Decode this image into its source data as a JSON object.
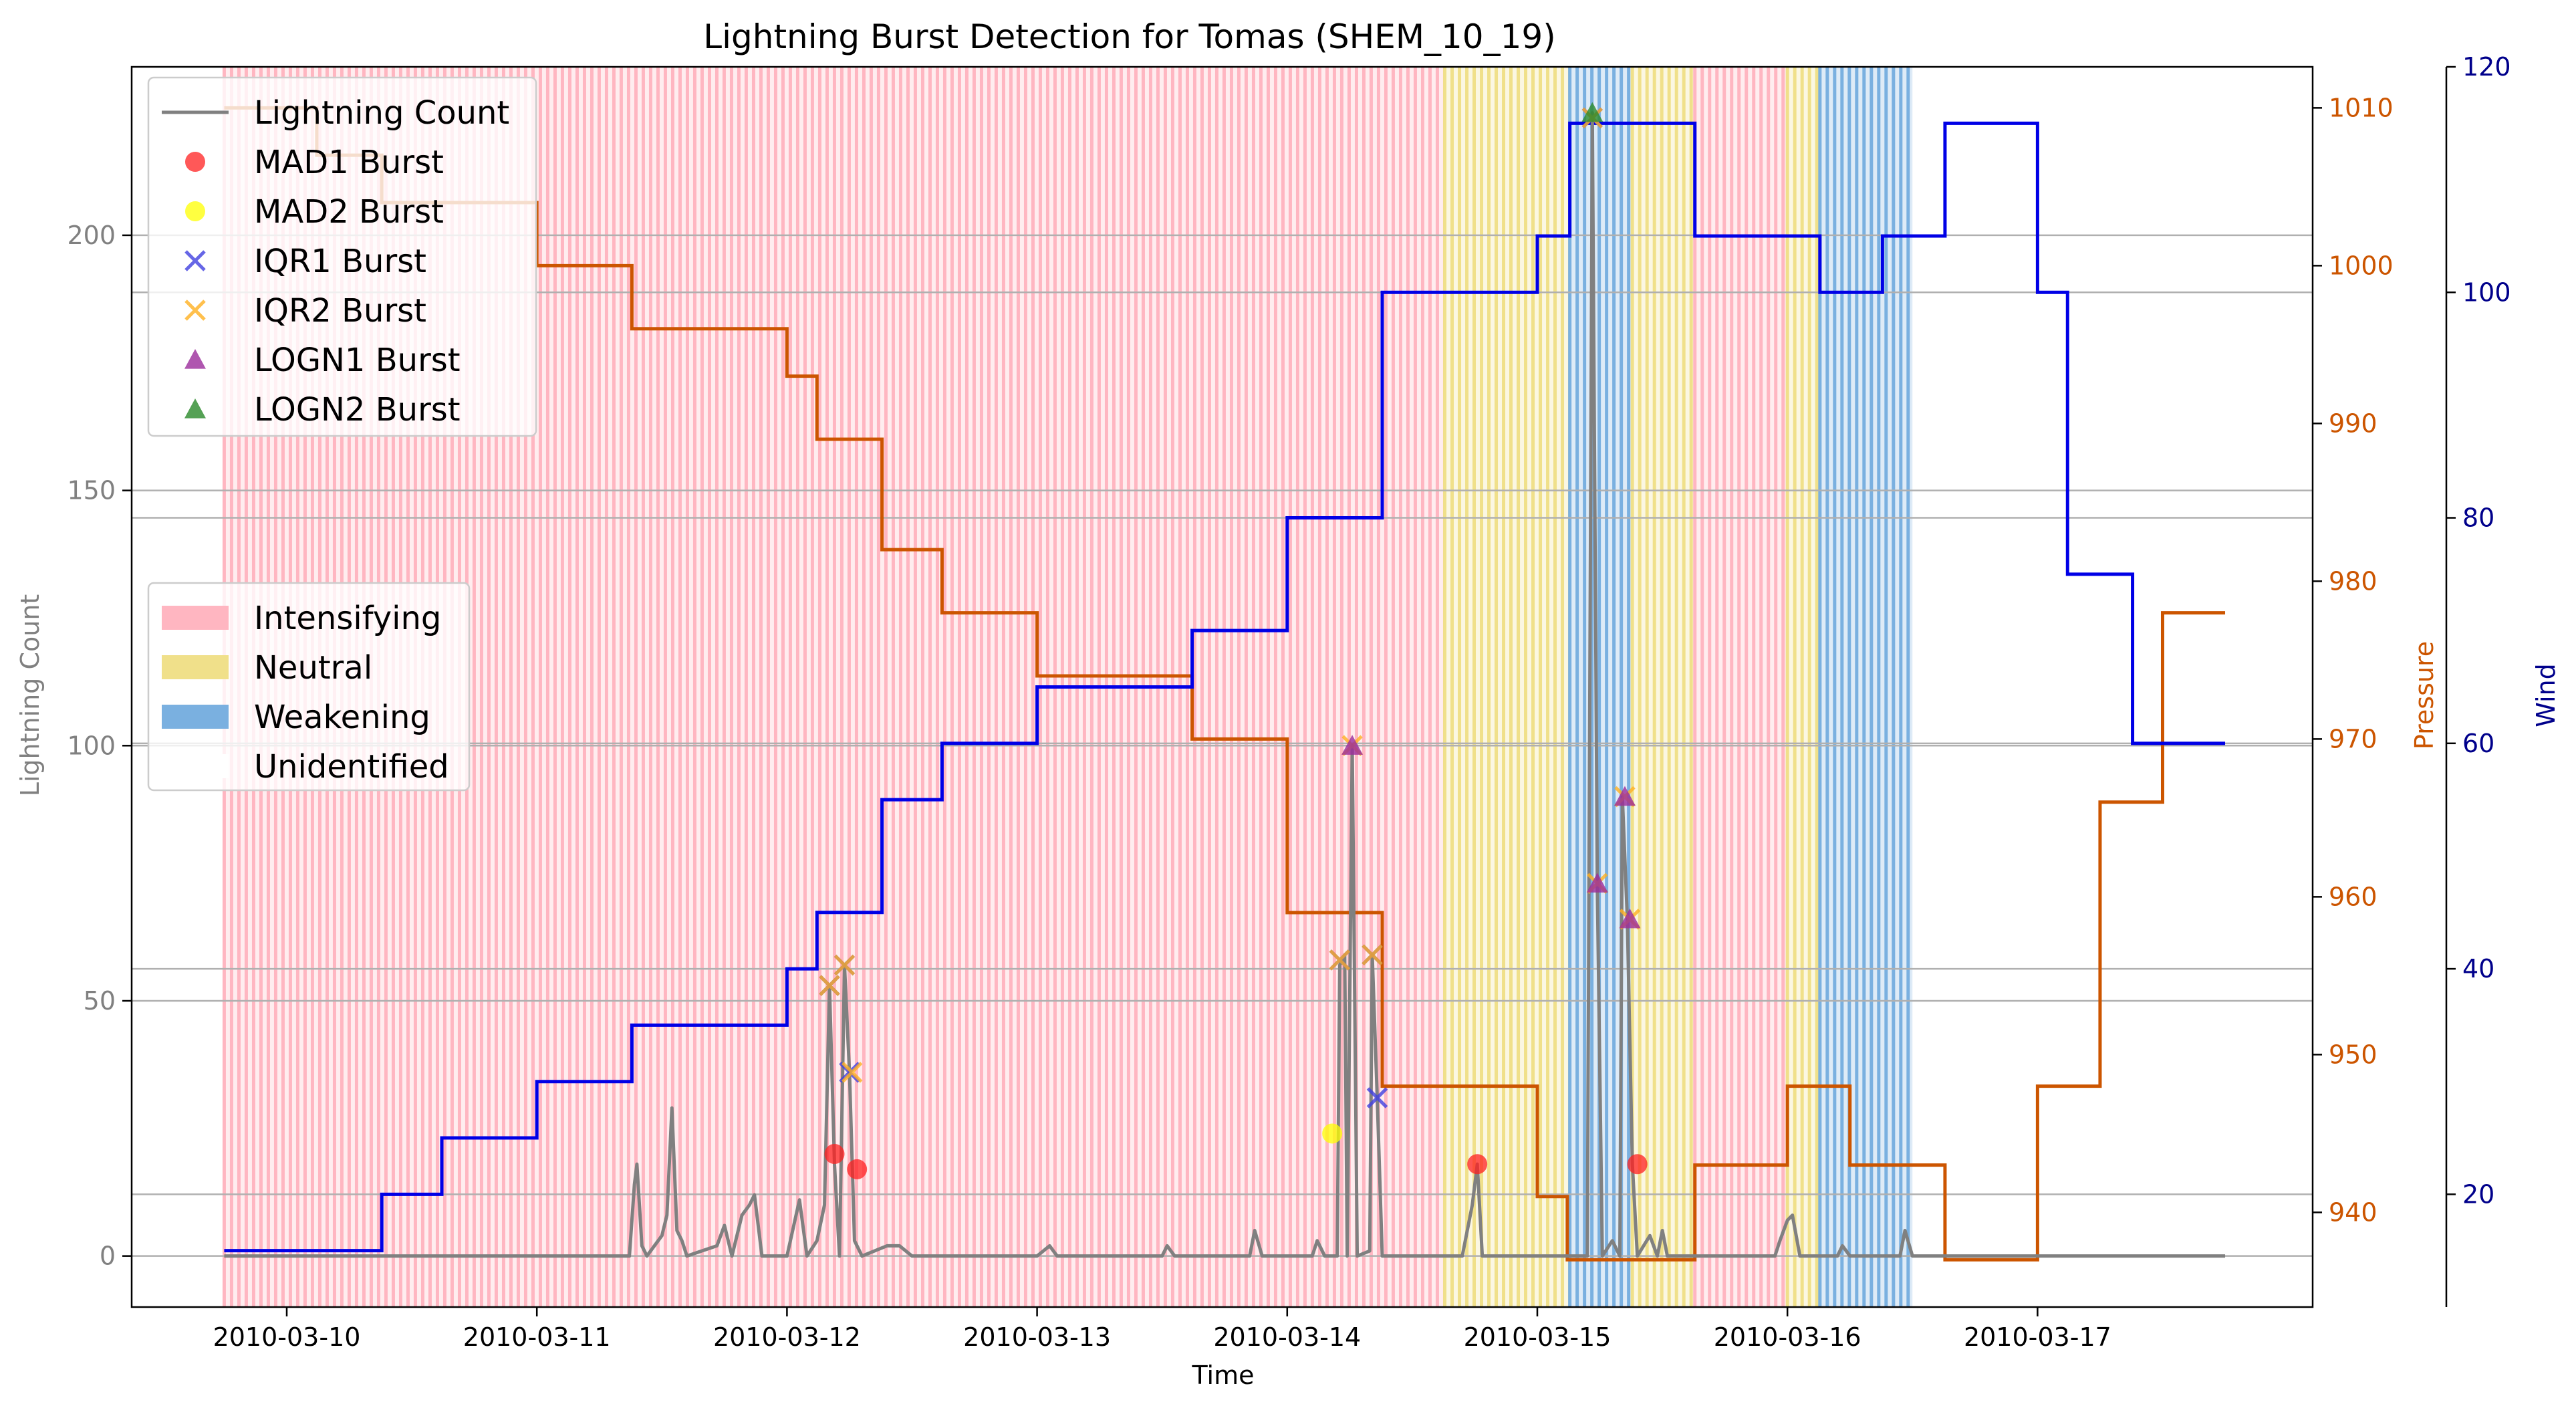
{
  "chart_data": {
    "type": "line",
    "title": "Lightning Burst Detection for Tomas (SHEM_10_19)",
    "xlabel": "Time",
    "x_ticks": [
      "2010-03-10",
      "2010-03-11",
      "2010-03-12",
      "2010-03-13",
      "2010-03-14",
      "2010-03-15",
      "2010-03-16",
      "2010-03-17"
    ],
    "xlim_days": [
      -0.62,
      8.1
    ],
    "x_origin": "2010-03-10",
    "axes": {
      "left": {
        "label": "Lightning Count",
        "ylim": [
          -10,
          233
        ],
        "ticks": [
          0,
          50,
          100,
          150,
          200
        ],
        "color": "#808080"
      },
      "pressure": {
        "label": "Pressure",
        "ylim": [
          934,
          1012.6
        ],
        "ticks": [
          940,
          950,
          960,
          970,
          980,
          990,
          1000,
          1010
        ],
        "color": "#cc5500"
      },
      "wind": {
        "label": "Wind",
        "ylim": [
          10,
          120
        ],
        "ticks": [
          20,
          40,
          60,
          80,
          100,
          120
        ],
        "color": "#00008b"
      }
    },
    "grid": "horizontal",
    "legend_series": [
      {
        "name": "Lightning Count",
        "marker": "line",
        "color": "#808080"
      },
      {
        "name": "MAD1 Burst",
        "marker": "circle",
        "color": "#ff2020"
      },
      {
        "name": "MAD2 Burst",
        "marker": "circle",
        "color": "#ffff00"
      },
      {
        "name": "IQR1 Burst",
        "marker": "x",
        "color": "#4040e0"
      },
      {
        "name": "IQR2 Burst",
        "marker": "x",
        "color": "#ffb020"
      },
      {
        "name": "LOGN1 Burst",
        "marker": "triangle",
        "color": "#9b2c9b"
      },
      {
        "name": "LOGN2 Burst",
        "marker": "triangle",
        "color": "#2a8a2a"
      }
    ],
    "legend_phases": [
      {
        "name": "Intensifying",
        "color": "#ffb6c1"
      },
      {
        "name": "Neutral",
        "color": "#f0e08a"
      },
      {
        "name": "Weakening",
        "color": "#7ab0e0"
      },
      {
        "name": "Unidentified",
        "color": "#ffffff"
      }
    ],
    "phases": [
      {
        "phase": "Intensifying",
        "start": -0.25,
        "end": 4.63
      },
      {
        "phase": "Neutral",
        "start": 4.63,
        "end": 5.13
      },
      {
        "phase": "Weakening",
        "start": 5.13,
        "end": 5.38
      },
      {
        "phase": "Neutral",
        "start": 5.38,
        "end": 5.63
      },
      {
        "phase": "Intensifying",
        "start": 5.63,
        "end": 6.0
      },
      {
        "phase": "Neutral",
        "start": 6.0,
        "end": 6.13
      },
      {
        "phase": "Weakening",
        "start": 6.13,
        "end": 6.5
      }
    ],
    "pressure_series": {
      "name": "Pressure",
      "steps": [
        [
          -0.25,
          1010
        ],
        [
          0.12,
          1007
        ],
        [
          0.38,
          1004
        ],
        [
          1.0,
          1000
        ],
        [
          1.38,
          996
        ],
        [
          2.0,
          993
        ],
        [
          2.12,
          989
        ],
        [
          2.38,
          982
        ],
        [
          2.62,
          978
        ],
        [
          3.0,
          974
        ],
        [
          3.62,
          970
        ],
        [
          4.0,
          959
        ],
        [
          4.38,
          948
        ],
        [
          5.0,
          941
        ],
        [
          5.12,
          937
        ],
        [
          5.63,
          943
        ],
        [
          6.0,
          948
        ],
        [
          6.25,
          943
        ],
        [
          6.63,
          937
        ],
        [
          7.0,
          948
        ],
        [
          7.25,
          966
        ],
        [
          7.5,
          978
        ],
        [
          7.75,
          978
        ]
      ]
    },
    "wind_series": {
      "name": "Wind",
      "steps": [
        [
          -0.25,
          15
        ],
        [
          0.38,
          20
        ],
        [
          0.62,
          25
        ],
        [
          1.0,
          30
        ],
        [
          1.38,
          35
        ],
        [
          2.0,
          40
        ],
        [
          2.12,
          45
        ],
        [
          2.38,
          55
        ],
        [
          2.62,
          60
        ],
        [
          3.0,
          65
        ],
        [
          3.62,
          70
        ],
        [
          4.0,
          80
        ],
        [
          4.38,
          100
        ],
        [
          5.0,
          105
        ],
        [
          5.13,
          115
        ],
        [
          5.63,
          105
        ],
        [
          6.13,
          100
        ],
        [
          6.38,
          105
        ],
        [
          6.63,
          115
        ],
        [
          7.0,
          100
        ],
        [
          7.12,
          75
        ],
        [
          7.38,
          60
        ],
        [
          7.75,
          60
        ]
      ]
    },
    "lightning_series": {
      "name": "Lightning Count",
      "points": [
        [
          -0.25,
          0
        ],
        [
          1.37,
          0
        ],
        [
          1.39,
          14
        ],
        [
          1.4,
          18
        ],
        [
          1.42,
          2
        ],
        [
          1.44,
          0
        ],
        [
          1.5,
          4
        ],
        [
          1.52,
          8
        ],
        [
          1.54,
          29
        ],
        [
          1.56,
          5
        ],
        [
          1.58,
          3
        ],
        [
          1.6,
          0
        ],
        [
          1.72,
          2
        ],
        [
          1.75,
          6
        ],
        [
          1.78,
          0
        ],
        [
          1.82,
          8
        ],
        [
          1.85,
          10
        ],
        [
          1.87,
          12
        ],
        [
          1.9,
          0
        ],
        [
          2.0,
          0
        ],
        [
          2.05,
          11
        ],
        [
          2.08,
          0
        ],
        [
          2.12,
          3
        ],
        [
          2.15,
          10
        ],
        [
          2.17,
          53
        ],
        [
          2.19,
          18
        ],
        [
          2.21,
          0
        ],
        [
          2.23,
          57
        ],
        [
          2.25,
          36
        ],
        [
          2.27,
          3
        ],
        [
          2.3,
          0
        ],
        [
          2.4,
          2
        ],
        [
          2.45,
          2
        ],
        [
          2.5,
          0
        ],
        [
          3.0,
          0
        ],
        [
          3.05,
          2
        ],
        [
          3.08,
          0
        ],
        [
          3.5,
          0
        ],
        [
          3.52,
          2
        ],
        [
          3.55,
          0
        ],
        [
          3.85,
          0
        ],
        [
          3.87,
          5
        ],
        [
          3.9,
          0
        ],
        [
          4.1,
          0
        ],
        [
          4.12,
          3
        ],
        [
          4.15,
          0
        ],
        [
          4.2,
          0
        ],
        [
          4.21,
          57
        ],
        [
          4.23,
          59
        ],
        [
          4.24,
          0
        ],
        [
          4.26,
          100
        ],
        [
          4.28,
          0
        ],
        [
          4.33,
          1
        ],
        [
          4.34,
          59
        ],
        [
          4.36,
          31
        ],
        [
          4.38,
          0
        ],
        [
          4.7,
          0
        ],
        [
          4.72,
          5
        ],
        [
          4.74,
          10
        ],
        [
          4.76,
          18
        ],
        [
          4.78,
          0
        ],
        [
          5.2,
          0
        ],
        [
          5.22,
          224
        ],
        [
          5.24,
          72
        ],
        [
          5.26,
          0
        ],
        [
          5.3,
          3
        ],
        [
          5.33,
          0
        ],
        [
          5.34,
          90
        ],
        [
          5.36,
          66
        ],
        [
          5.38,
          18
        ],
        [
          5.4,
          0
        ],
        [
          5.45,
          4
        ],
        [
          5.48,
          0
        ],
        [
          5.5,
          5
        ],
        [
          5.52,
          0
        ],
        [
          5.95,
          0
        ],
        [
          5.97,
          3
        ],
        [
          6.0,
          7
        ],
        [
          6.02,
          8
        ],
        [
          6.05,
          0
        ],
        [
          6.2,
          0
        ],
        [
          6.22,
          2
        ],
        [
          6.25,
          0
        ],
        [
          6.45,
          0
        ],
        [
          6.47,
          5
        ],
        [
          6.5,
          0
        ],
        [
          7.75,
          0
        ]
      ]
    },
    "bursts": {
      "mad1": [
        [
          2.19,
          20
        ],
        [
          2.28,
          17
        ],
        [
          4.76,
          18
        ],
        [
          5.4,
          18
        ]
      ],
      "mad2": [
        [
          4.18,
          24
        ]
      ],
      "iqr1": [
        [
          2.17,
          53
        ],
        [
          2.23,
          57
        ],
        [
          2.25,
          36
        ],
        [
          4.21,
          58
        ],
        [
          4.34,
          59
        ],
        [
          4.36,
          31
        ],
        [
          5.22,
          223
        ]
      ],
      "iqr2": [
        [
          2.17,
          53
        ],
        [
          2.23,
          57
        ],
        [
          2.26,
          36
        ],
        [
          4.21,
          58
        ],
        [
          4.26,
          100
        ],
        [
          4.34,
          59
        ],
        [
          5.22,
          223
        ],
        [
          5.24,
          73
        ],
        [
          5.35,
          90
        ],
        [
          5.37,
          66
        ]
      ],
      "logn1": [
        [
          4.26,
          100
        ],
        [
          5.24,
          73
        ],
        [
          5.35,
          90
        ],
        [
          5.37,
          66
        ]
      ],
      "logn2": [
        [
          5.22,
          224
        ]
      ]
    }
  }
}
